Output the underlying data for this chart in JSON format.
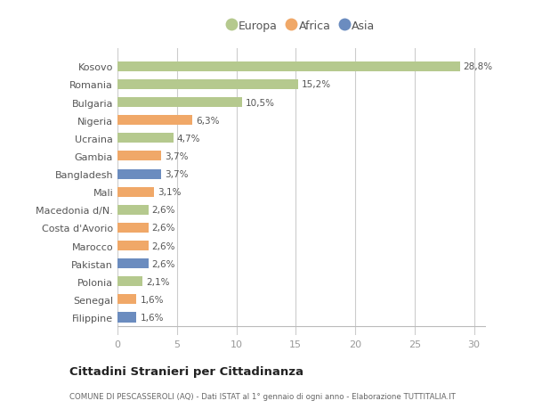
{
  "countries": [
    "Kosovo",
    "Romania",
    "Bulgaria",
    "Nigeria",
    "Ucraina",
    "Gambia",
    "Bangladesh",
    "Mali",
    "Macedonia d/N.",
    "Costa d'Avorio",
    "Marocco",
    "Pakistan",
    "Polonia",
    "Senegal",
    "Filippine"
  ],
  "values": [
    28.8,
    15.2,
    10.5,
    6.3,
    4.7,
    3.7,
    3.7,
    3.1,
    2.6,
    2.6,
    2.6,
    2.6,
    2.1,
    1.6,
    1.6
  ],
  "labels": [
    "28,8%",
    "15,2%",
    "10,5%",
    "6,3%",
    "4,7%",
    "3,7%",
    "3,7%",
    "3,1%",
    "2,6%",
    "2,6%",
    "2,6%",
    "2,6%",
    "2,1%",
    "1,6%",
    "1,6%"
  ],
  "continents": [
    "Europa",
    "Europa",
    "Europa",
    "Africa",
    "Europa",
    "Africa",
    "Asia",
    "Africa",
    "Europa",
    "Africa",
    "Africa",
    "Asia",
    "Europa",
    "Africa",
    "Asia"
  ],
  "colors": {
    "Europa": "#b5c98e",
    "Africa": "#f0a868",
    "Asia": "#6b8cbf"
  },
  "title": "Cittadini Stranieri per Cittadinanza",
  "subtitle": "COMUNE DI PESCASSEROLI (AQ) - Dati ISTAT al 1° gennaio di ogni anno - Elaborazione TUTTITALIA.IT",
  "xlim": [
    0,
    31
  ],
  "xticks": [
    0,
    5,
    10,
    15,
    20,
    25,
    30
  ],
  "background_color": "#ffffff",
  "grid_color": "#cccccc",
  "bar_height": 0.55
}
